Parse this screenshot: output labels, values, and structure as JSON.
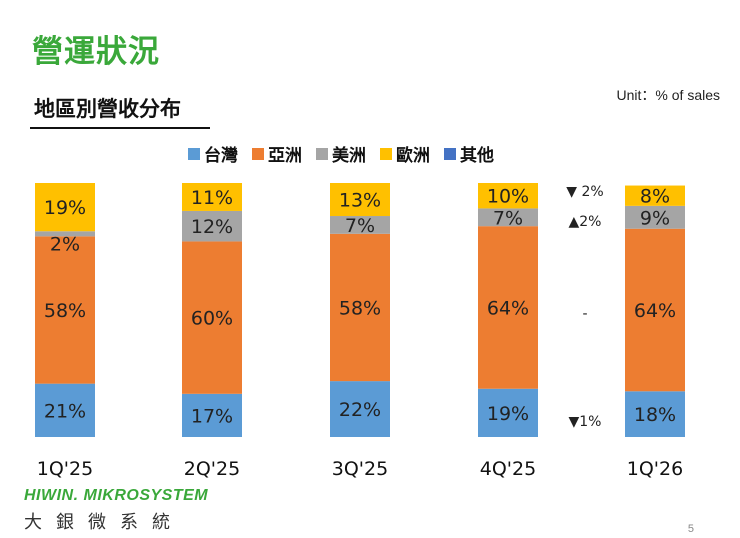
{
  "header": {
    "title": "營運狀況",
    "subtitle": "地區別營收分布",
    "unit": "Unit：% of sales"
  },
  "chart_data": {
    "type": "bar",
    "stacked": true,
    "categories": [
      "1Q'25",
      "2Q'25",
      "3Q'25",
      "4Q'25",
      "1Q'26"
    ],
    "series": [
      {
        "name": "台灣",
        "color": "#5b9bd5",
        "values": [
          21,
          17,
          22,
          19,
          18
        ]
      },
      {
        "name": "亞洲",
        "color": "#ed7d31",
        "values": [
          58,
          60,
          58,
          64,
          64
        ]
      },
      {
        "name": "美洲",
        "color": "#a5a5a5",
        "values": [
          2,
          12,
          7,
          7,
          9
        ]
      },
      {
        "name": "歐洲",
        "color": "#ffc000",
        "values": [
          19,
          11,
          13,
          10,
          8
        ]
      },
      {
        "name": "其他",
        "color": "#4472c4",
        "values": [
          0,
          0,
          0,
          0,
          0
        ]
      }
    ],
    "data_labels": [
      [
        "21%",
        "58%",
        "2%",
        "19%"
      ],
      [
        "17%",
        "60%",
        "12%",
        "11%"
      ],
      [
        "22%",
        "58%",
        "7%",
        "13%"
      ],
      [
        "19%",
        "64%",
        "7%",
        "10%"
      ],
      [
        "18%",
        "64%",
        "9%",
        "8%"
      ]
    ],
    "changes": {
      "歐洲": "▼ 2%",
      "美洲": "▲2%",
      "亞洲": "-",
      "台灣": "▼1%"
    },
    "ylim": [
      0,
      100
    ],
    "legend": "top"
  },
  "footer": {
    "brand": "HIWIN. MIKROSYSTEM",
    "brand_cn": "大銀微系統",
    "page_number": "5"
  }
}
